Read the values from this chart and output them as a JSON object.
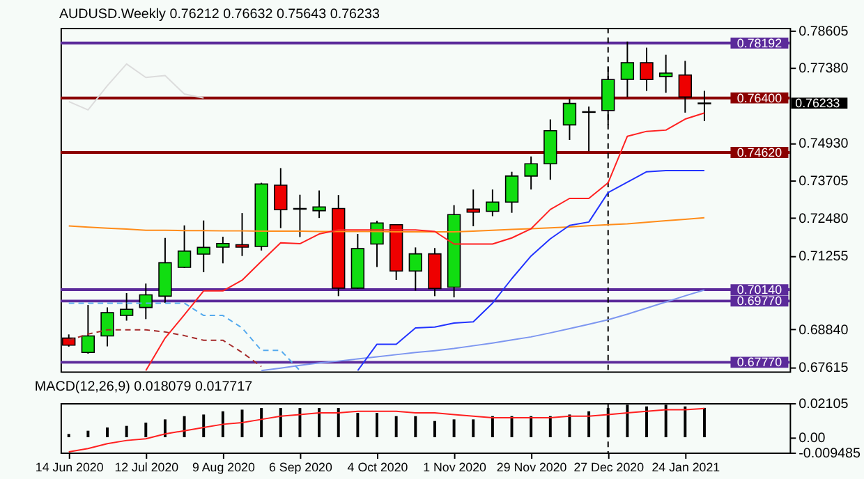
{
  "chart_data": [
    {
      "type": "candlestick",
      "title": "AUDUSD.Weekly 0.76212 0.76632 0.75643 0.76233",
      "x": [
        "2020-06-14",
        "2020-06-21",
        "2020-06-28",
        "2020-07-05",
        "2020-07-12",
        "2020-07-19",
        "2020-07-26",
        "2020-08-02",
        "2020-08-09",
        "2020-08-16",
        "2020-08-23",
        "2020-08-30",
        "2020-09-06",
        "2020-09-13",
        "2020-09-20",
        "2020-09-27",
        "2020-10-04",
        "2020-10-11",
        "2020-10-18",
        "2020-10-25",
        "2020-11-01",
        "2020-11-08",
        "2020-11-15",
        "2020-11-22",
        "2020-11-29",
        "2020-12-06",
        "2020-12-13",
        "2020-12-20",
        "2020-12-27",
        "2021-01-03",
        "2021-01-10",
        "2021-01-17",
        "2021-01-24",
        "2021-01-31"
      ],
      "ohlc": [
        [
          0.6856,
          0.6868,
          0.6828,
          0.6833
        ],
        [
          0.6809,
          0.6964,
          0.6805,
          0.6863
        ],
        [
          0.6863,
          0.6956,
          0.6829,
          0.6939
        ],
        [
          0.693,
          0.7003,
          0.6913,
          0.695
        ],
        [
          0.6956,
          0.7034,
          0.6918,
          0.6997
        ],
        [
          0.6993,
          0.7183,
          0.6971,
          0.7102
        ],
        [
          0.7087,
          0.7224,
          0.7085,
          0.714
        ],
        [
          0.713,
          0.724,
          0.7071,
          0.7152
        ],
        [
          0.7153,
          0.7187,
          0.71,
          0.7165
        ],
        [
          0.7161,
          0.7264,
          0.7124,
          0.7153
        ],
        [
          0.7155,
          0.7363,
          0.7142,
          0.7359
        ],
        [
          0.7355,
          0.7411,
          0.7215,
          0.7275
        ],
        [
          0.7279,
          0.7324,
          0.7186,
          0.7277
        ],
        [
          0.7272,
          0.7338,
          0.7248,
          0.7284
        ],
        [
          0.7279,
          0.7323,
          0.6993,
          0.7019
        ],
        [
          0.7019,
          0.7196,
          0.7017,
          0.7148
        ],
        [
          0.7163,
          0.7239,
          0.7088,
          0.7232
        ],
        [
          0.7226,
          0.7228,
          0.7046,
          0.7075
        ],
        [
          0.7075,
          0.7152,
          0.7011,
          0.7131
        ],
        [
          0.7131,
          0.715,
          0.6993,
          0.7018
        ],
        [
          0.7022,
          0.729,
          0.6989,
          0.7259
        ],
        [
          0.7277,
          0.7341,
          0.7221,
          0.7267
        ],
        [
          0.727,
          0.7341,
          0.7254,
          0.73
        ],
        [
          0.73,
          0.7399,
          0.7265,
          0.7385
        ],
        [
          0.7385,
          0.7449,
          0.7341,
          0.7425
        ],
        [
          0.7425,
          0.757,
          0.7373,
          0.7533
        ],
        [
          0.7552,
          0.7637,
          0.7503,
          0.7622
        ],
        [
          0.7595,
          0.7612,
          0.7466,
          0.7593
        ],
        [
          0.7599,
          0.7741,
          0.7552,
          0.77
        ],
        [
          0.7701,
          0.7824,
          0.7643,
          0.7755
        ],
        [
          0.7755,
          0.7804,
          0.7663,
          0.77
        ],
        [
          0.771,
          0.7781,
          0.7657,
          0.7721
        ],
        [
          0.7715,
          0.7761,
          0.7592,
          0.7643
        ],
        [
          0.76212,
          0.76632,
          0.75643,
          0.76233
        ]
      ],
      "colors": [
        "#ee0000",
        "#11dd11",
        "#11dd11",
        "#11dd11",
        "#11dd11",
        "#11dd11",
        "#11dd11",
        "#11dd11",
        "#11dd11",
        "#ee0000",
        "#11dd11",
        "#ee0000",
        "#000000",
        "#11dd11",
        "#ee0000",
        "#11dd11",
        "#11dd11",
        "#ee0000",
        "#11dd11",
        "#ee0000",
        "#11dd11",
        "#ee0000",
        "#11dd11",
        "#11dd11",
        "#11dd11",
        "#11dd11",
        "#11dd11",
        "#000000",
        "#11dd11",
        "#11dd11",
        "#ee0000",
        "#11dd11",
        "#ee0000",
        "#000000"
      ],
      "series": [
        {
          "type": "line",
          "color": "#dcdcdc",
          "values": [
            0.7628,
            0.7601,
            0.768,
            0.7751,
            0.7707,
            0.7713,
            0.7653,
            0.764,
            null,
            null,
            null,
            null,
            null,
            null,
            null,
            null,
            null,
            null,
            null,
            null,
            null,
            null,
            null,
            null,
            null,
            null,
            null,
            null,
            null,
            null,
            null,
            null,
            null,
            null
          ]
        },
        {
          "type": "line",
          "color": "#55aaee",
          "line_style": "dashed",
          "values": [
            0.697,
            0.697,
            0.697,
            0.697,
            0.697,
            0.697,
            0.697,
            0.693,
            0.693,
            0.6889,
            0.6816,
            0.6816,
            0.675,
            null,
            null,
            null,
            null,
            null,
            null,
            null,
            null,
            null,
            null,
            null,
            null,
            null,
            null,
            null,
            null,
            null,
            null,
            null,
            null,
            null
          ]
        },
        {
          "type": "line",
          "color": "#a52a2a",
          "line_style": "dashed",
          "values": [
            0.6849,
            0.6869,
            0.6883,
            0.6883,
            0.6883,
            0.6876,
            0.6864,
            0.6849,
            0.6849,
            0.6809,
            0.6763,
            null,
            null,
            null,
            null,
            null,
            null,
            null,
            null,
            null,
            null,
            null,
            null,
            null,
            null,
            null,
            null,
            null,
            null,
            null,
            null,
            null,
            null,
            null
          ]
        },
        {
          "type": "line",
          "color": "#ff8c1a",
          "values": [
            0.7222,
            0.7218,
            0.7215,
            0.7212,
            0.7208,
            0.7208,
            0.7207,
            0.7207,
            0.7206,
            0.7206,
            0.7205,
            0.7205,
            0.7205,
            0.7204,
            0.7204,
            0.7204,
            0.7204,
            0.7203,
            0.7203,
            0.7203,
            0.7203,
            0.7205,
            0.7208,
            0.7211,
            0.7213,
            0.7216,
            0.7219,
            0.7223,
            0.7226,
            0.7229,
            0.7234,
            0.7239,
            0.7244,
            0.7249
          ]
        },
        {
          "type": "line",
          "color": "#7d96f0",
          "values": [
            null,
            null,
            null,
            null,
            null,
            null,
            null,
            null,
            null,
            null,
            0.675,
            0.6758,
            0.6767,
            0.6775,
            0.6781,
            0.6788,
            0.6795,
            0.6802,
            0.6809,
            0.6815,
            0.6822,
            0.6831,
            0.684,
            0.685,
            0.686,
            0.6873,
            0.6887,
            0.6901,
            0.6916,
            0.6934,
            0.6954,
            0.6974,
            0.6994,
            0.7013
          ]
        },
        {
          "type": "line",
          "color": "#2233ff",
          "values": [
            null,
            null,
            null,
            null,
            null,
            null,
            null,
            null,
            null,
            null,
            null,
            null,
            null,
            null,
            null,
            0.675,
            0.6836,
            0.6836,
            0.6889,
            0.6892,
            0.6905,
            0.6909,
            0.697,
            0.705,
            0.7124,
            0.718,
            0.7224,
            0.7235,
            0.7331,
            0.7365,
            0.7399,
            0.7403,
            0.7403,
            0.7403
          ]
        },
        {
          "type": "line",
          "color": "#ff2020",
          "values": [
            null,
            null,
            null,
            null,
            0.675,
            0.6856,
            0.6932,
            0.701,
            0.701,
            0.7045,
            0.7107,
            0.7167,
            0.7164,
            0.7196,
            0.7209,
            0.7209,
            0.7209,
            0.7209,
            0.7209,
            0.7204,
            0.7163,
            0.7163,
            0.7163,
            0.7183,
            0.7213,
            0.7276,
            0.7312,
            0.7312,
            0.7363,
            0.7515,
            0.7531,
            0.7535,
            0.7571,
            0.7591
          ]
        }
      ],
      "xlim": [
        "2020-06-11",
        "2021-03-03"
      ],
      "ylim": [
        0.6747,
        0.7869
      ],
      "yticks": [
        0.78605,
        {
          "value": 0.7738,
          "label": "0.77380"
        },
        {
          "value": 0.7493,
          "label": "0.74930"
        },
        0.73705,
        {
          "value": 0.7248,
          "label": "0.72480"
        },
        0.71255,
        {
          "value": 0.6884,
          "label": "0.68840"
        },
        0.67615
      ],
      "tick_labels": "y",
      "ref_lines": [
        {
          "axis": "y",
          "value": 0.78192,
          "label": "0.78192",
          "color": "#5b2a9a"
        },
        {
          "axis": "y",
          "value": 0.764,
          "label": "0.76400",
          "color": "#8b0000"
        },
        {
          "axis": "y",
          "value": 0.7462,
          "label": "0.74620",
          "color": "#8b0000"
        },
        {
          "axis": "y",
          "value": 0.7014,
          "label": "0.70140",
          "color": "#5b2a9a"
        },
        {
          "axis": "y",
          "value": 0.6977,
          "label": "0.69770",
          "color": "#5b2a9a"
        },
        {
          "axis": "y",
          "value": 0.6777,
          "label": "0.67770",
          "color": "#5b2a9a"
        },
        {
          "axis": "x",
          "value": "2020-12-27",
          "color": "#000000",
          "line_style": "dashed"
        }
      ],
      "annotations": [
        "0.76233"
      ]
    },
    {
      "type": "bar",
      "title": "MACD(12,26,9) 0.018079 0.017717",
      "x": [
        "2020-06-14",
        "2020-06-21",
        "2020-06-28",
        "2020-07-05",
        "2020-07-12",
        "2020-07-19",
        "2020-07-26",
        "2020-08-02",
        "2020-08-09",
        "2020-08-16",
        "2020-08-23",
        "2020-08-30",
        "2020-09-06",
        "2020-09-13",
        "2020-09-20",
        "2020-09-27",
        "2020-10-04",
        "2020-10-11",
        "2020-10-18",
        "2020-10-25",
        "2020-11-01",
        "2020-11-08",
        "2020-11-15",
        "2020-11-22",
        "2020-11-29",
        "2020-12-06",
        "2020-12-13",
        "2020-12-20",
        "2020-12-27",
        "2021-01-03",
        "2021-01-10",
        "2021-01-17",
        "2021-01-24",
        "2021-01-31"
      ],
      "series": [
        {
          "type": "bar",
          "color": "#000000",
          "values": [
            0.002,
            0.004,
            0.006,
            0.007,
            0.009,
            0.011,
            0.013,
            0.014,
            0.016,
            0.017,
            0.018,
            0.018,
            0.018,
            0.018,
            0.018,
            0.015,
            0.015,
            0.013,
            0.013,
            0.01,
            0.011,
            0.011,
            0.013,
            0.013,
            0.013,
            0.013,
            0.014,
            0.016,
            0.018,
            0.02,
            0.019,
            0.02,
            0.019,
            0.018079
          ]
        },
        {
          "type": "line",
          "color": "#ff2020",
          "values": [
            -0.009,
            -0.007,
            -0.004,
            -0.002,
            -0.001,
            0.002,
            0.004,
            0.006,
            0.008,
            0.009,
            0.011,
            0.013,
            0.014,
            0.015,
            0.015,
            0.016,
            0.016,
            0.016,
            0.015,
            0.015,
            0.014,
            0.013,
            0.012,
            0.012,
            0.012,
            0.012,
            0.013,
            0.013,
            0.014,
            0.015,
            0.016,
            0.017,
            0.017,
            0.017717
          ]
        }
      ],
      "xlim": [
        "2020-06-11",
        "2021-03-03"
      ],
      "ylim": [
        -0.009485,
        0.02105
      ],
      "yticks": [
        0.02105,
        {
          "value": 0,
          "label": "0.00"
        },
        -0.009485
      ],
      "xticks": [
        {
          "value": "2020-06-14",
          "label": "14 Jun 2020"
        },
        {
          "value": "2020-07-12",
          "label": "12 Jul 2020"
        },
        {
          "value": "2020-08-09",
          "label": "9 Aug 2020"
        },
        {
          "value": "2020-09-06",
          "label": "6 Sep 2020"
        },
        {
          "value": "2020-10-04",
          "label": "4 Oct 2020"
        },
        {
          "value": "2020-11-01",
          "label": "1 Nov 2020"
        },
        {
          "value": "2020-11-29",
          "label": "29 Nov 2020"
        },
        {
          "value": "2020-12-27",
          "label": "27 Dec 2020"
        },
        {
          "value": "2021-01-24",
          "label": "24 Jan 2021"
        }
      ],
      "ref_lines": [
        {
          "axis": "x",
          "value": "2020-12-27",
          "color": "#000000",
          "line_style": "dashed"
        }
      ]
    }
  ]
}
